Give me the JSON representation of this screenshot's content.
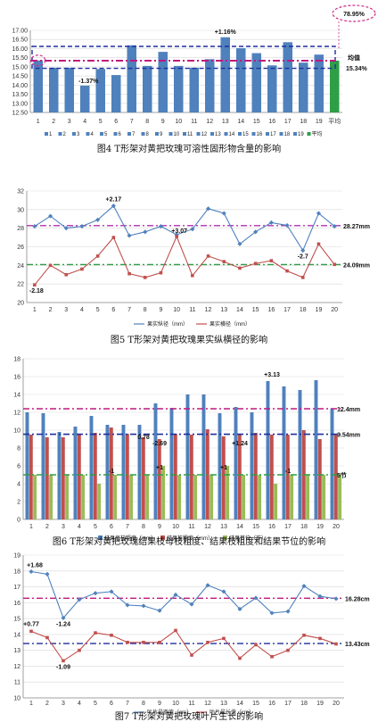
{
  "chart_data": [
    {
      "id": "fig4",
      "type": "bar",
      "caption": "图4 T形架对黄把玫瑰可溶性固形物含量的影响",
      "categories": [
        "1",
        "2",
        "3",
        "4",
        "5",
        "6",
        "7",
        "8",
        "9",
        "10",
        "11",
        "12",
        "13",
        "14",
        "15",
        "16",
        "17",
        "18",
        "19",
        "平均"
      ],
      "values": [
        15.35,
        14.95,
        14.95,
        13.97,
        14.88,
        14.55,
        16.18,
        15.05,
        15.82,
        15.05,
        14.95,
        15.42,
        16.62,
        16.02,
        15.75,
        15.08,
        16.35,
        15.23,
        15.67,
        15.34
      ],
      "ylim": [
        12.5,
        17.0
      ],
      "yticks": [
        "12.50",
        "13.00",
        "13.50",
        "14.00",
        "14.50",
        "15.00",
        "15.50",
        "16.00",
        "16.50",
        "17.00"
      ],
      "legend": [
        "1",
        "2",
        "3",
        "4",
        "5",
        "6",
        "7",
        "8",
        "9",
        "10",
        "11",
        "12",
        "13",
        "14",
        "15",
        "16",
        "17",
        "18",
        "19",
        "平均"
      ],
      "colors": {
        "bar": "#4f81bd",
        "mean_bar": "#2e9e47",
        "mean_line": "#c0187f",
        "box": "#1f2f9e",
        "ellipse": "#d02b87"
      },
      "mean_value": 15.34,
      "box_range": [
        14.92,
        16.12
      ],
      "annotations": {
        "high": "+1.16%",
        "low": "-1.37%",
        "pct": "78.95%",
        "mean_label": "均值",
        "mean_value": "15.34%"
      }
    },
    {
      "id": "fig5",
      "type": "line",
      "caption": "图5 T形架对黄把玫瑰果实纵横径的影响",
      "x": [
        "1",
        "2",
        "3",
        "4",
        "5",
        "6",
        "7",
        "8",
        "9",
        "10",
        "11",
        "12",
        "13",
        "14",
        "15",
        "16",
        "17",
        "18",
        "19",
        "20"
      ],
      "ylim": [
        20,
        32
      ],
      "yticks": [
        "20",
        "22",
        "24",
        "26",
        "28",
        "30",
        "32"
      ],
      "series": [
        {
          "name": "果实纵径（mm）",
          "values": [
            28.2,
            29.3,
            28.0,
            28.2,
            28.9,
            30.4,
            27.2,
            27.6,
            28.2,
            27.3,
            27.9,
            30.1,
            29.6,
            26.3,
            27.6,
            28.6,
            28.3,
            25.6,
            29.6,
            28.2
          ],
          "color": "#4f81bd"
        },
        {
          "name": "果实横径（mm）",
          "values": [
            21.9,
            24.0,
            23.0,
            23.6,
            25.0,
            27.0,
            23.1,
            22.7,
            23.2,
            27.1,
            22.9,
            25.0,
            24.4,
            23.7,
            24.2,
            24.5,
            23.4,
            22.7,
            26.3,
            24.1
          ],
          "color": "#c0504d"
        }
      ],
      "mean_lines": [
        {
          "value": 28.27,
          "label": "28.27mm",
          "color": "#b02fb0"
        },
        {
          "value": 24.09,
          "label": "24.09mm",
          "color": "#2e9e47"
        }
      ],
      "annotations": [
        "+2.17",
        "-2.18",
        "+3.07",
        "-2.7"
      ]
    },
    {
      "id": "fig6",
      "type": "bar",
      "caption": "图6 T形架对黄把玫瑰结果枝母枝粗度、结果枝粗度和结果节位的影响",
      "categories": [
        "1",
        "2",
        "3",
        "4",
        "5",
        "6",
        "7",
        "8",
        "9",
        "10",
        "11",
        "12",
        "13",
        "14",
        "15",
        "16",
        "17",
        "18",
        "19",
        "20"
      ],
      "ylim": [
        0,
        18
      ],
      "yticks": [
        "0",
        "2",
        "4",
        "6",
        "8",
        "10",
        "12",
        "14",
        "16",
        "18"
      ],
      "series": [
        {
          "name": "结果母枝粗度（mm）",
          "values": [
            12.0,
            11.9,
            9.8,
            10.4,
            11.6,
            10.6,
            10.6,
            10.6,
            13.0,
            12.5,
            14.0,
            14.0,
            11.9,
            12.6,
            12.0,
            15.5,
            14.9,
            14.5,
            15.6,
            12.4
          ],
          "color": "#4f81bd"
        },
        {
          "name": "结果枝粗度（mm）",
          "values": [
            9.5,
            9.2,
            9.2,
            9.6,
            9.7,
            10.3,
            9.6,
            9.2,
            9.0,
            9.6,
            9.5,
            10.1,
            9.3,
            9.5,
            9.7,
            9.5,
            9.5,
            10.0,
            9.0,
            9.5
          ],
          "color": "#c0504d"
        },
        {
          "name": "结果节位（节）",
          "values": [
            5,
            5,
            5,
            5,
            4,
            5,
            5,
            5,
            6,
            5,
            5,
            5,
            6,
            5,
            5,
            4,
            5,
            5,
            5,
            5
          ],
          "color": "#9bbb59"
        }
      ],
      "mean_lines": [
        {
          "value": 12.4,
          "label": "12.4mm",
          "color": "#c0187f"
        },
        {
          "value": 9.54,
          "label": "9.54mm",
          "color": "#1f2f9e"
        },
        {
          "value": 5.0,
          "label": "5节",
          "color": "#2e9e47"
        }
      ],
      "annotations": [
        "+3.13",
        "-2.69",
        "+1.24",
        "0.78",
        "-1",
        "+1",
        "+1",
        "-1"
      ]
    },
    {
      "id": "fig7",
      "type": "line",
      "caption": "图7 T形架对黄把玫瑰叶片生长的影响",
      "x": [
        "1",
        "2",
        "3",
        "4",
        "5",
        "6",
        "7",
        "8",
        "9",
        "10",
        "11",
        "12",
        "13",
        "14",
        "15",
        "16",
        "17",
        "18",
        "19",
        "20"
      ],
      "ylim": [
        10,
        19
      ],
      "yticks": [
        "10",
        "11",
        "12",
        "13",
        "14",
        "15",
        "16",
        "17",
        "18",
        "19"
      ],
      "series": [
        {
          "name": "叶片最宽值（cm）",
          "values": [
            17.96,
            17.8,
            15.04,
            16.2,
            16.6,
            16.7,
            15.85,
            15.8,
            15.5,
            16.5,
            15.9,
            17.1,
            16.7,
            15.6,
            16.3,
            15.35,
            15.45,
            17.05,
            16.4,
            16.25
          ],
          "color": "#4f81bd"
        },
        {
          "name": "叶片最长值（cm）",
          "values": [
            14.2,
            13.8,
            12.34,
            13.0,
            14.1,
            13.95,
            13.5,
            13.5,
            13.5,
            14.25,
            12.7,
            13.5,
            13.75,
            12.5,
            13.35,
            12.6,
            13.0,
            13.95,
            13.75,
            13.4
          ],
          "color": "#c0504d"
        }
      ],
      "mean_lines": [
        {
          "value": 16.28,
          "label": "16.28cm",
          "color": "#c0187f"
        },
        {
          "value": 13.43,
          "label": "13.43cm",
          "color": "#1f2f9e"
        }
      ],
      "annotations": [
        "+1.68",
        "-1.24",
        "+0.77",
        "-1.09"
      ]
    }
  ]
}
